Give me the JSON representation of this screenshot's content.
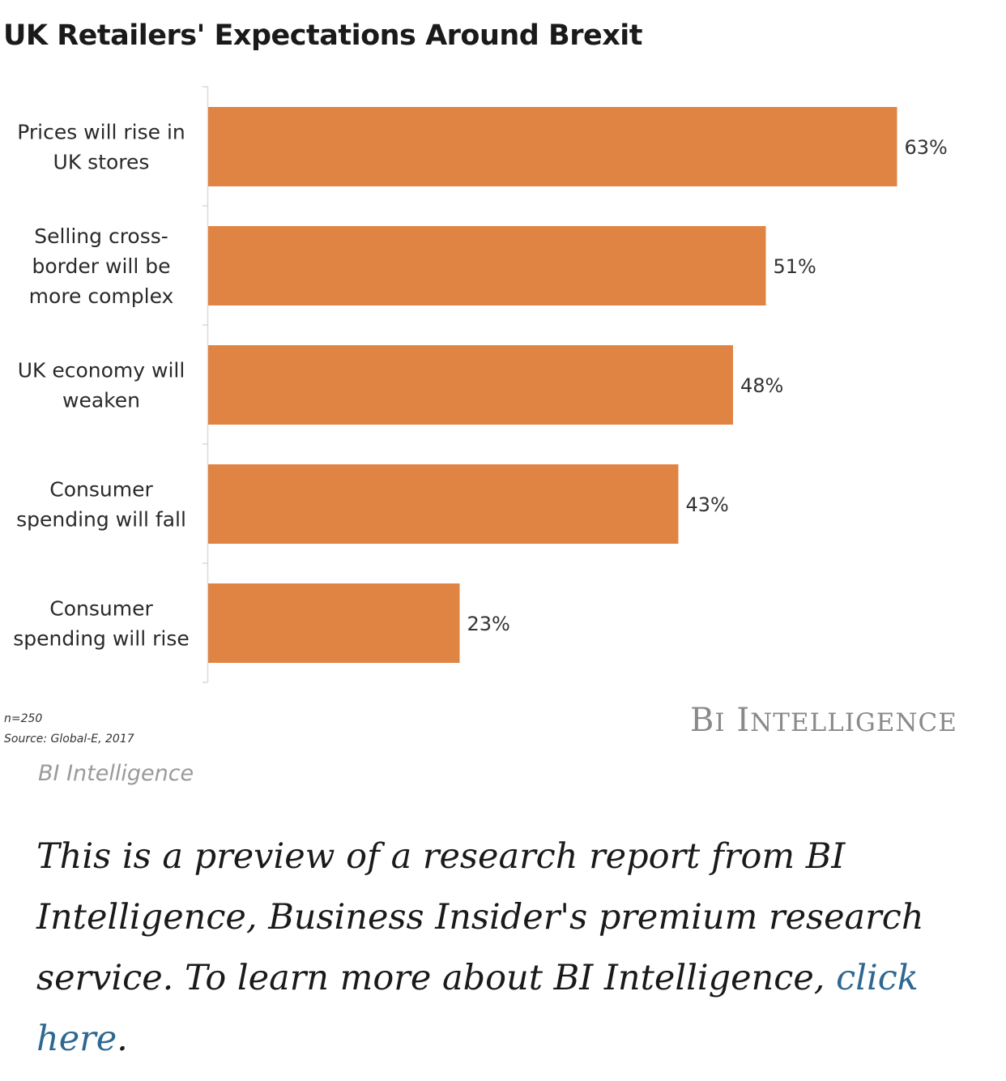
{
  "chart_data": {
    "type": "bar",
    "orientation": "horizontal",
    "title": "UK Retailers' Expectations Around Brexit",
    "categories": [
      [
        "Prices will rise in",
        "UK stores"
      ],
      [
        "Selling cross-",
        "border will be",
        "more complex"
      ],
      [
        "UK economy will",
        "weaken"
      ],
      [
        "Consumer",
        "spending will fall"
      ],
      [
        "Consumer",
        "spending will rise"
      ]
    ],
    "values": [
      63,
      51,
      48,
      43,
      23
    ],
    "value_labels": [
      "63%",
      "51%",
      "48%",
      "43%",
      "23%"
    ],
    "unit": "%",
    "xlim": [
      0,
      70
    ],
    "grid": false,
    "legend": "none",
    "bar_color": "#e08443"
  },
  "footnotes": {
    "sample": "n=250",
    "source": "Source: Global-E, 2017"
  },
  "brand": {
    "logo_text": "BI Intelligence"
  },
  "caption": "BI Intelligence",
  "preview": {
    "text": "This is a preview of a research report from BI Intelligence, Business Insider's premium research service. To learn more about BI Intelligence, ",
    "link_text": "click here",
    "after_link": "."
  },
  "colors": {
    "bar": "#e08443",
    "link": "#2e6892",
    "logo": "#8a8a8a"
  }
}
